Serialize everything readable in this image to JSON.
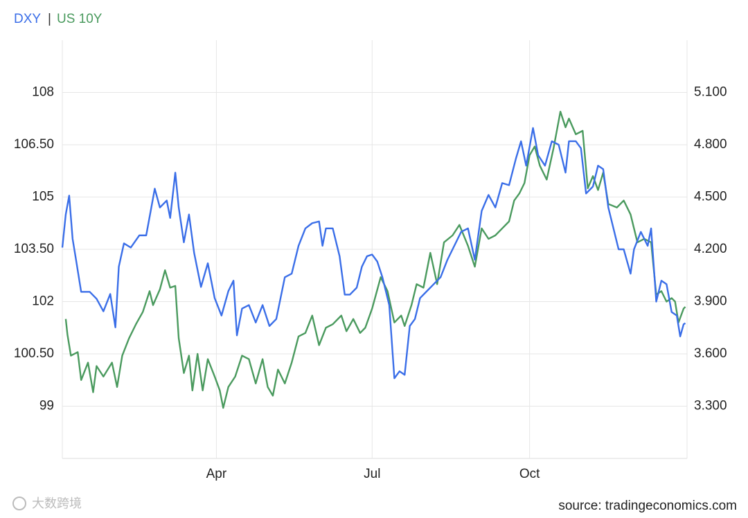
{
  "chart_data": {
    "type": "line",
    "legend_separator": "|",
    "source": "source: tradingeconomics.com",
    "watermark": "大数跨境",
    "xlim": [
      0,
      365
    ],
    "xticks": [
      {
        "value": 90,
        "label": "Apr"
      },
      {
        "value": 181,
        "label": "Jul"
      },
      {
        "value": 273,
        "label": "Oct"
      }
    ],
    "ylim": [
      97.5,
      109.5
    ],
    "yticks": [
      99,
      {
        "value": 100.5,
        "label": "100.50"
      },
      102,
      {
        "value": 103.5,
        "label": "103.50"
      },
      105,
      {
        "value": 106.5,
        "label": "106.50"
      },
      108
    ],
    "y2lim": [
      3.0,
      5.4
    ],
    "y2ticks": [
      {
        "value": 3.3,
        "label": "3.300"
      },
      {
        "value": 3.6,
        "label": "3.600"
      },
      {
        "value": 3.9,
        "label": "3.900"
      },
      {
        "value": 4.2,
        "label": "4.200"
      },
      {
        "value": 4.5,
        "label": "4.500"
      },
      {
        "value": 4.8,
        "label": "4.800"
      },
      {
        "value": 5.1,
        "label": "5.100"
      }
    ],
    "grid": true,
    "series": [
      {
        "name": "DXY",
        "color": "#3a6ee8",
        "axis": "y",
        "x": [
          0,
          2,
          4,
          6,
          8,
          11,
          16,
          20,
          24,
          28,
          31,
          33,
          36,
          40,
          45,
          49,
          52,
          54,
          57,
          61,
          63,
          66,
          68,
          71,
          74,
          77,
          81,
          85,
          89,
          93,
          97,
          100,
          102,
          105,
          109,
          113,
          117,
          121,
          125,
          130,
          134,
          138,
          142,
          146,
          150,
          152,
          154,
          158,
          162,
          165,
          168,
          172,
          175,
          178,
          181,
          184,
          187,
          191,
          194,
          197,
          200,
          203,
          206,
          209,
          213,
          217,
          221,
          225,
          229,
          233,
          237,
          241,
          245,
          249,
          253,
          257,
          261,
          265,
          268,
          271,
          275,
          278,
          282,
          286,
          290,
          294,
          296,
          300,
          303,
          306,
          310,
          313,
          316,
          319,
          322,
          325,
          328,
          332,
          334,
          338,
          342,
          344,
          347,
          350,
          353,
          356,
          359,
          361,
          363,
          364
        ],
        "values": [
          103.55,
          104.5,
          105.04,
          103.8,
          103.2,
          102.28,
          102.28,
          102.08,
          101.72,
          102.22,
          101.26,
          103.0,
          103.67,
          103.55,
          103.9,
          103.9,
          104.7,
          105.24,
          104.7,
          104.9,
          104.4,
          105.7,
          104.7,
          103.7,
          104.5,
          103.4,
          102.42,
          103.1,
          102.1,
          101.6,
          102.3,
          102.6,
          101.03,
          101.8,
          101.9,
          101.4,
          101.9,
          101.3,
          101.5,
          102.7,
          102.8,
          103.6,
          104.1,
          104.25,
          104.3,
          103.6,
          104.1,
          104.1,
          103.3,
          102.2,
          102.2,
          102.4,
          103.0,
          103.3,
          103.35,
          103.15,
          102.7,
          101.9,
          99.8,
          100.0,
          99.9,
          101.3,
          101.5,
          102.1,
          102.3,
          102.5,
          102.7,
          103.2,
          103.6,
          104.0,
          104.1,
          103.2,
          104.6,
          105.06,
          104.7,
          105.4,
          105.34,
          106.1,
          106.6,
          105.9,
          106.98,
          106.2,
          105.9,
          106.6,
          106.5,
          105.7,
          106.6,
          106.6,
          106.4,
          105.1,
          105.3,
          105.9,
          105.8,
          104.7,
          104.1,
          103.5,
          103.5,
          102.8,
          103.5,
          104.0,
          103.6,
          104.1,
          102.0,
          102.6,
          102.5,
          101.7,
          101.6,
          101.0,
          101.35,
          101.38
        ]
      },
      {
        "name": "US 10Y",
        "color": "#4a9a5e",
        "axis": "y2",
        "x": [
          2,
          3,
          5,
          9,
          11,
          15,
          18,
          20,
          24,
          29,
          32,
          35,
          39,
          43,
          47,
          51,
          53,
          57,
          60,
          63,
          66,
          68,
          71,
          74,
          76,
          79,
          82,
          85,
          89,
          92,
          94,
          97,
          101,
          105,
          109,
          113,
          117,
          120,
          123,
          126,
          130,
          134,
          138,
          142,
          146,
          150,
          154,
          158,
          163,
          166,
          170,
          174,
          177,
          181,
          186,
          190,
          194,
          198,
          200,
          204,
          207,
          211,
          215,
          219,
          223,
          228,
          232,
          237,
          241,
          245,
          249,
          253,
          257,
          261,
          264,
          267,
          270,
          273,
          276,
          279,
          283,
          287,
          291,
          294,
          296,
          300,
          304,
          307,
          310,
          313,
          316,
          319,
          324,
          328,
          332,
          336,
          340,
          344,
          347,
          350,
          353,
          356,
          358,
          360,
          363,
          364
        ],
        "values": [
          3.8,
          3.71,
          3.59,
          3.61,
          3.45,
          3.55,
          3.38,
          3.53,
          3.47,
          3.55,
          3.41,
          3.59,
          3.69,
          3.77,
          3.84,
          3.96,
          3.88,
          3.97,
          4.08,
          3.98,
          3.99,
          3.69,
          3.49,
          3.59,
          3.39,
          3.6,
          3.39,
          3.57,
          3.47,
          3.39,
          3.29,
          3.41,
          3.47,
          3.59,
          3.57,
          3.43,
          3.57,
          3.41,
          3.36,
          3.51,
          3.43,
          3.55,
          3.7,
          3.72,
          3.82,
          3.65,
          3.75,
          3.77,
          3.82,
          3.73,
          3.8,
          3.72,
          3.75,
          3.86,
          4.04,
          3.96,
          3.78,
          3.82,
          3.76,
          3.88,
          4.0,
          3.98,
          4.18,
          4.0,
          4.24,
          4.28,
          4.34,
          4.22,
          4.1,
          4.32,
          4.26,
          4.28,
          4.32,
          4.36,
          4.48,
          4.52,
          4.58,
          4.74,
          4.79,
          4.68,
          4.6,
          4.78,
          4.99,
          4.9,
          4.95,
          4.86,
          4.88,
          4.55,
          4.62,
          4.54,
          4.64,
          4.46,
          4.44,
          4.48,
          4.4,
          4.24,
          4.26,
          4.24,
          3.94,
          3.96,
          3.9,
          3.92,
          3.9,
          3.78,
          3.86,
          3.87
        ]
      }
    ]
  }
}
